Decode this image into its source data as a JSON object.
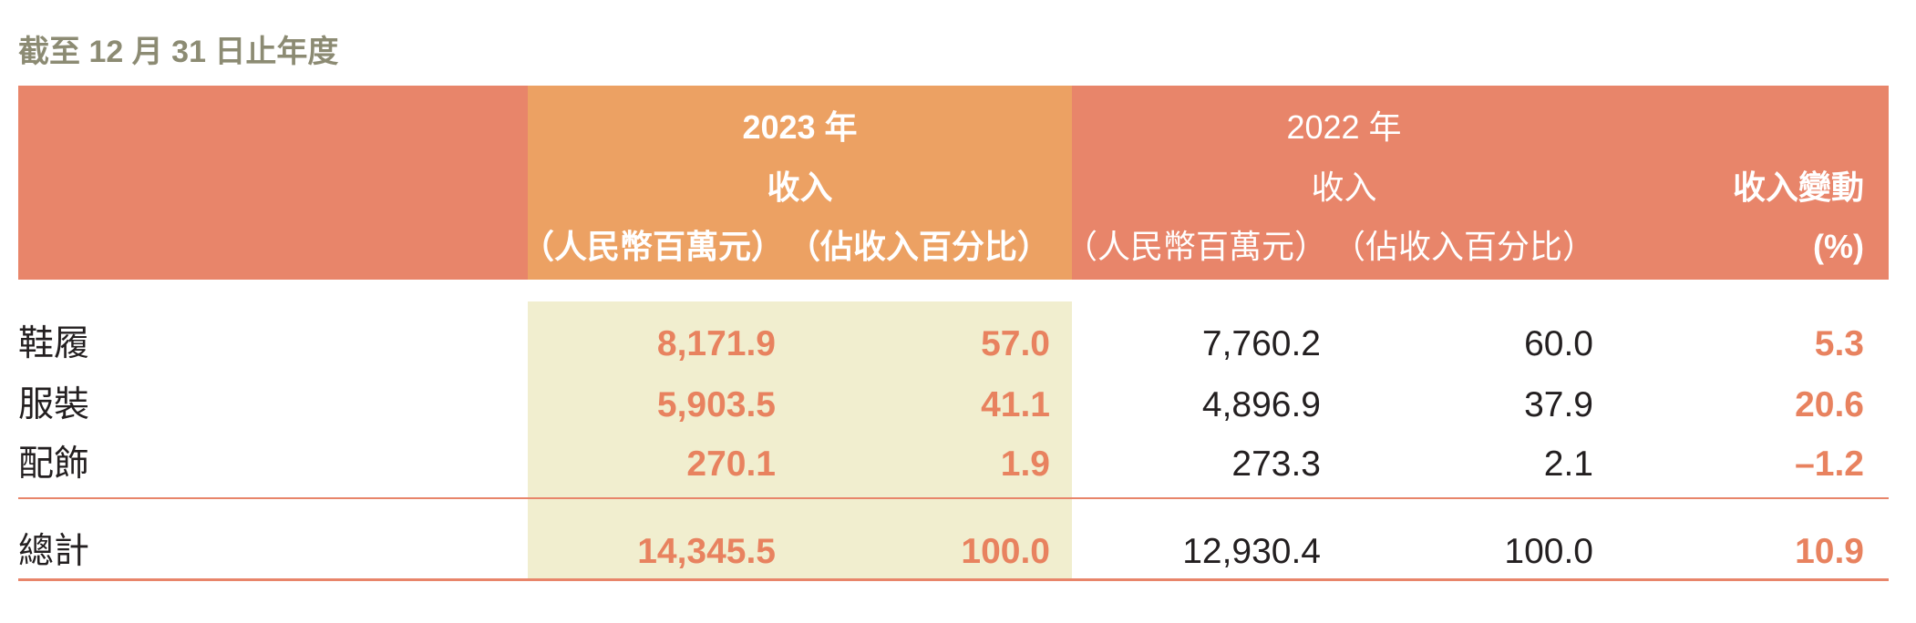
{
  "title": "截至 12 月 31 日止年度",
  "header": {
    "y2023": {
      "year": "2023 年",
      "revenue": "收入",
      "unit_rmb": "（人民幣百萬元）",
      "unit_pct": "（佔收入百分比）"
    },
    "y2022": {
      "year": "2022 年",
      "revenue": "收入",
      "unit_rmb": "（人民幣百萬元）",
      "unit_pct": "（佔收入百分比）"
    },
    "change": {
      "label": "收入變動",
      "unit": "(%)"
    }
  },
  "rows": [
    {
      "label": "鞋履",
      "rev2023": "8,171.9",
      "pct2023": "57.0",
      "rev2022": "7,760.2",
      "pct2022": "60.0",
      "change": "5.3"
    },
    {
      "label": "服裝",
      "rev2023": "5,903.5",
      "pct2023": "41.1",
      "rev2022": "4,896.9",
      "pct2022": "37.9",
      "change": "20.6"
    },
    {
      "label": "配飾",
      "rev2023": "270.1",
      "pct2023": "1.9",
      "rev2022": "273.3",
      "pct2022": "2.1",
      "change": "–1.2"
    }
  ],
  "total": {
    "label": "總計",
    "rev2023": "14,345.5",
    "pct2023": "100.0",
    "rev2022": "12,930.4",
    "pct2022": "100.0",
    "change": "10.9"
  },
  "colors": {
    "header": "#e8856a",
    "header_highlight": "#eca163",
    "body_highlight": "#f1eecf",
    "accent_text": "#e8825f",
    "title": "#8c8b73"
  }
}
